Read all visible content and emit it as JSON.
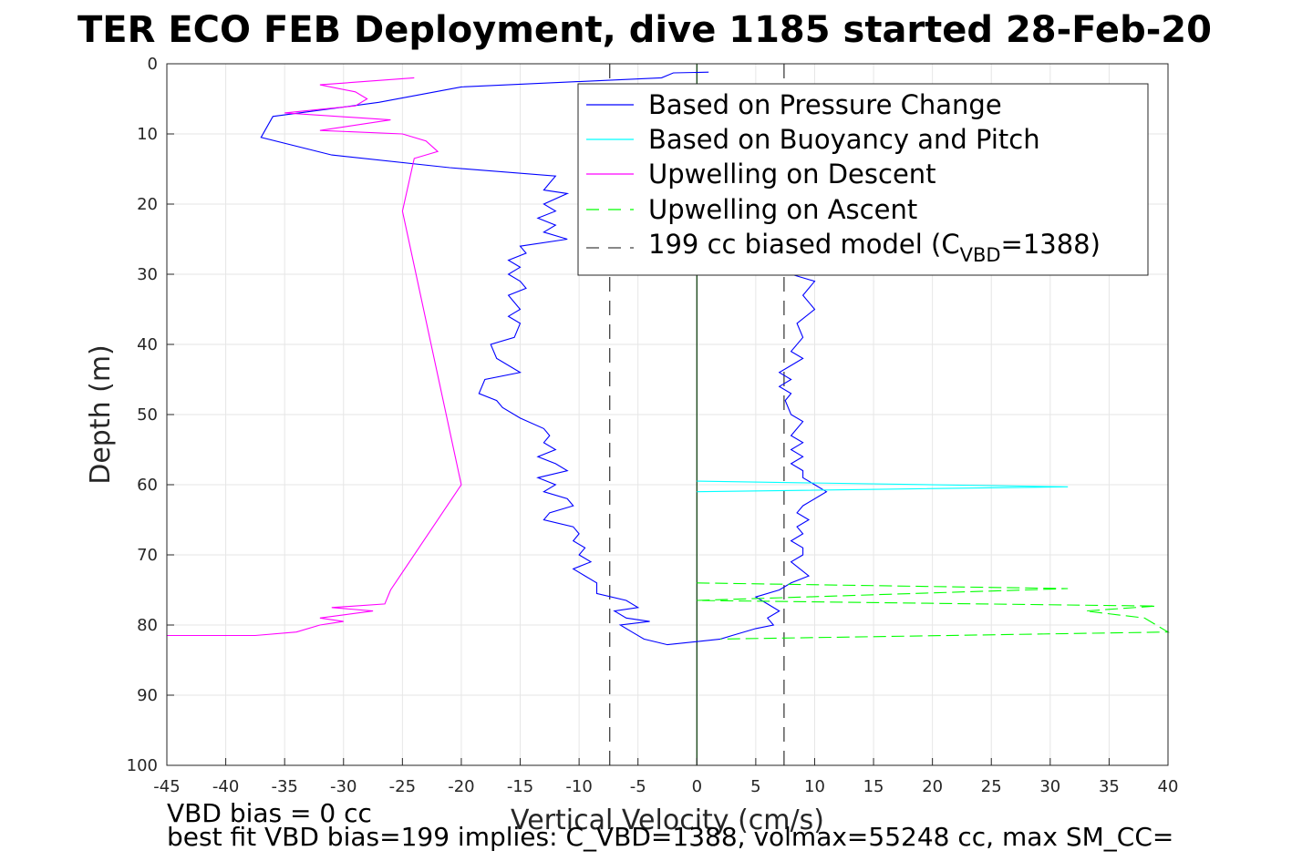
{
  "chart_data": {
    "type": "line",
    "title": "TER ECO FEB Deployment, dive 1185 started 28-Feb-20",
    "xlabel": "Vertical Velocity (cm/s)",
    "ylabel": "Depth (m)",
    "xlim": [
      -45,
      40
    ],
    "ylim": [
      0,
      100
    ],
    "y_reversed": true,
    "grid": true,
    "legend_placement": "top-right",
    "xticks": [
      -45,
      -40,
      -35,
      -30,
      -25,
      -20,
      -15,
      -10,
      -5,
      0,
      5,
      10,
      15,
      20,
      25,
      30,
      35,
      40
    ],
    "yticks": [
      0,
      10,
      20,
      30,
      40,
      50,
      60,
      70,
      80,
      90,
      100
    ],
    "legend": {
      "entries": [
        "Based on Pressure Change",
        "Based on Buoyancy and Pitch",
        "Upwelling on Descent",
        "Upwelling on Ascent"
      ],
      "model_prefix": "199 cc biased model (C",
      "model_sub": "VBD",
      "model_suffix": "=1388)"
    },
    "colors": {
      "pressure": "#0000ff",
      "buoyancy": "#00ffff",
      "descent": "#ff00ff",
      "ascent": "#00ff00",
      "model": "#404040",
      "zero_line": "#003300"
    },
    "series": [
      {
        "name": "Based on Pressure Change",
        "points": [
          [
            1,
            1.2
          ],
          [
            -2,
            1.3
          ],
          [
            -3,
            2
          ],
          [
            -20,
            3.3
          ],
          [
            -27,
            5.5
          ],
          [
            -36,
            7.5
          ],
          [
            -37,
            10.5
          ],
          [
            -31,
            13
          ],
          [
            -21,
            14.8
          ],
          [
            -12,
            16
          ],
          [
            -12.5,
            17
          ],
          [
            -13,
            18
          ],
          [
            -11,
            18.5
          ],
          [
            -13,
            20
          ],
          [
            -12,
            21
          ],
          [
            -13.5,
            22
          ],
          [
            -12,
            23
          ],
          [
            -13,
            24
          ],
          [
            -11,
            25
          ],
          [
            -15,
            26
          ],
          [
            -14.5,
            27
          ],
          [
            -16,
            28
          ],
          [
            -15,
            29
          ],
          [
            -16,
            30
          ],
          [
            -15,
            31
          ],
          [
            -14.5,
            32
          ],
          [
            -16,
            33
          ],
          [
            -15,
            35
          ],
          [
            -16,
            36
          ],
          [
            -15,
            37
          ],
          [
            -15.5,
            39
          ],
          [
            -17.5,
            40
          ],
          [
            -17,
            42
          ],
          [
            -15,
            44
          ],
          [
            -18,
            45
          ],
          [
            -18.5,
            47
          ],
          [
            -17,
            48
          ],
          [
            -16.5,
            49
          ],
          [
            -15,
            50.5
          ],
          [
            -13,
            52
          ],
          [
            -12.5,
            53
          ],
          [
            -13,
            54
          ],
          [
            -12,
            55
          ],
          [
            -13.5,
            56
          ],
          [
            -12,
            57
          ],
          [
            -11,
            58
          ],
          [
            -13.5,
            59
          ],
          [
            -12,
            60
          ],
          [
            -13,
            61
          ],
          [
            -11,
            62
          ],
          [
            -10.5,
            63
          ],
          [
            -12.5,
            64
          ],
          [
            -13,
            65
          ],
          [
            -10.5,
            66
          ],
          [
            -10,
            67
          ],
          [
            -10.5,
            68
          ],
          [
            -9.5,
            69
          ],
          [
            -10,
            70
          ],
          [
            -9,
            71
          ],
          [
            -10.5,
            72
          ],
          [
            -9.5,
            73
          ],
          [
            -8.5,
            74
          ],
          [
            -8.5,
            75.5
          ],
          [
            -6,
            76.5
          ],
          [
            -5,
            77.5
          ],
          [
            -7,
            78
          ],
          [
            -6,
            79
          ],
          [
            -4,
            79.5
          ],
          [
            -6.5,
            80
          ],
          [
            -5.5,
            81
          ],
          [
            -4.5,
            82
          ],
          [
            -2.5,
            82.8
          ],
          [
            2,
            82
          ],
          [
            3,
            81.5
          ],
          [
            5,
            80.5
          ],
          [
            6.5,
            80
          ],
          [
            6,
            79
          ],
          [
            7,
            78
          ],
          [
            6,
            77
          ],
          [
            5,
            76
          ],
          [
            7,
            75
          ],
          [
            8,
            74
          ],
          [
            9.5,
            73
          ],
          [
            8,
            71
          ],
          [
            9,
            70
          ],
          [
            9,
            69
          ],
          [
            8,
            68
          ],
          [
            9,
            67
          ],
          [
            8.5,
            66
          ],
          [
            9.5,
            65
          ],
          [
            8.5,
            64
          ],
          [
            9,
            63
          ],
          [
            11,
            61
          ],
          [
            10,
            60
          ],
          [
            9,
            59
          ],
          [
            9,
            58
          ],
          [
            8,
            57
          ],
          [
            9,
            56
          ],
          [
            8,
            55
          ],
          [
            9,
            54
          ],
          [
            8,
            53
          ],
          [
            8.5,
            52
          ],
          [
            9,
            51
          ],
          [
            8,
            50
          ],
          [
            7.5,
            48
          ],
          [
            8,
            47
          ],
          [
            7,
            46
          ],
          [
            8,
            45
          ],
          [
            7,
            44
          ],
          [
            8,
            43
          ],
          [
            9,
            42
          ],
          [
            8,
            41
          ],
          [
            9,
            39
          ],
          [
            8.5,
            37
          ],
          [
            10,
            35
          ],
          [
            9,
            33
          ],
          [
            10,
            31
          ],
          [
            8,
            30
          ]
        ]
      },
      {
        "name": "Based on Buoyancy and Pitch",
        "points": [
          [
            0,
            59.5
          ],
          [
            31.5,
            60.3
          ],
          [
            0,
            61
          ]
        ]
      },
      {
        "name": "Upwelling on Descent",
        "points": [
          [
            -24,
            2
          ],
          [
            -32,
            3
          ],
          [
            -29,
            4
          ],
          [
            -28,
            5
          ],
          [
            -29,
            6
          ],
          [
            -35,
            7
          ],
          [
            -26,
            8
          ],
          [
            -32,
            9.5
          ],
          [
            -25,
            10
          ],
          [
            -23,
            11
          ],
          [
            -22,
            12.5
          ],
          [
            -24,
            13.5
          ],
          [
            -25,
            21
          ],
          [
            -20,
            60
          ],
          [
            -26,
            75
          ],
          [
            -26.5,
            77
          ],
          [
            -31,
            77.5
          ],
          [
            -27.5,
            78
          ],
          [
            -32,
            79
          ],
          [
            -30,
            79.5
          ],
          [
            -32,
            80
          ],
          [
            -34,
            81
          ],
          [
            -37.5,
            81.5
          ],
          [
            -45,
            81.5
          ]
        ]
      },
      {
        "name": "Upwelling on Ascent",
        "points": [
          [
            0,
            74
          ],
          [
            31.5,
            74.8
          ],
          [
            0,
            76.5
          ],
          [
            39,
            77.3
          ],
          [
            33,
            78
          ],
          [
            38,
            79
          ],
          [
            40,
            81
          ],
          [
            2,
            82
          ]
        ]
      }
    ],
    "model_lines_x": [
      -7.4,
      7.4
    ],
    "footer": {
      "line1": "VBD bias = 0 cc",
      "line2": "best fit VBD bias=199 implies: C_VBD=1388, volmax=55248 cc, max SM_CC="
    }
  }
}
